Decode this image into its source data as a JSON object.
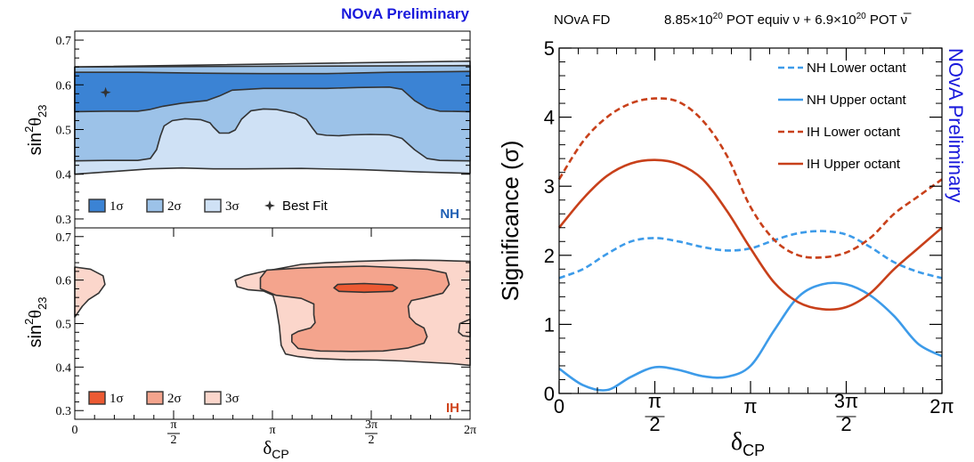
{
  "chart_data": [
    {
      "type": "contour",
      "panel": "NH",
      "title": "NOvA Preliminary",
      "title_color": "#1a1adc",
      "xlabel": "δ",
      "xlabel_sub": "CP",
      "ylabel": "sin",
      "ylabel_sup": "2",
      "ylabel_theta": "θ",
      "ylabel_sub": "23",
      "xlim": [
        0,
        6.2832
      ],
      "ylim": [
        0.28,
        0.72
      ],
      "xticks": [
        "0",
        "π/2",
        "π",
        "3π/2",
        "2π"
      ],
      "yticks": [
        "0.3",
        "0.4",
        "0.5",
        "0.6",
        "0.7"
      ],
      "panel_label": "NH",
      "panel_label_color": "#1f5fb4",
      "legend": [
        {
          "label": "1σ",
          "color": "#3b83d4"
        },
        {
          "label": "2σ",
          "color": "#9cc2e8"
        },
        {
          "label": "3σ",
          "color": "#cfe1f5"
        },
        {
          "label": "Best Fit",
          "marker": "star"
        }
      ],
      "best_fit": {
        "x": 0.49,
        "y": 0.583
      },
      "regions": [
        {
          "level": "3σ",
          "color": "#cfe1f5",
          "points": [
            [
              0,
              0.64
            ],
            [
              6.2832,
              0.653
            ],
            [
              6.2832,
              0.402
            ],
            [
              5.5,
              0.405
            ],
            [
              4.6,
              0.41
            ],
            [
              3.6,
              0.413
            ],
            [
              2.7,
              0.412
            ],
            [
              2.2,
              0.412
            ],
            [
              1.7,
              0.414
            ],
            [
              1.2,
              0.412
            ],
            [
              0.6,
              0.406
            ],
            [
              0,
              0.4
            ]
          ]
        },
        {
          "level": "2σ",
          "color": "#9cc2e8",
          "points": [
            [
              0,
              0.64
            ],
            [
              6.2832,
              0.643
            ],
            [
              6.2832,
              0.43
            ],
            [
              5.8,
              0.431
            ],
            [
              5.6,
              0.435
            ],
            [
              5.4,
              0.455
            ],
            [
              5.2,
              0.48
            ],
            [
              5.0,
              0.488
            ],
            [
              4.7,
              0.489
            ],
            [
              4.4,
              0.488
            ],
            [
              4.2,
              0.486
            ],
            [
              4.0,
              0.487
            ],
            [
              3.85,
              0.49
            ],
            [
              3.78,
              0.503
            ],
            [
              3.68,
              0.523
            ],
            [
              3.5,
              0.536
            ],
            [
              3.2,
              0.545
            ],
            [
              3.0,
              0.546
            ],
            [
              2.8,
              0.542
            ],
            [
              2.65,
              0.523
            ],
            [
              2.55,
              0.499
            ],
            [
              2.45,
              0.492
            ],
            [
              2.3,
              0.492
            ],
            [
              2.2,
              0.506
            ],
            [
              2.15,
              0.515
            ],
            [
              2.0,
              0.522
            ],
            [
              1.75,
              0.524
            ],
            [
              1.55,
              0.52
            ],
            [
              1.42,
              0.508
            ],
            [
              1.36,
              0.485
            ],
            [
              1.3,
              0.455
            ],
            [
              1.2,
              0.435
            ],
            [
              1.0,
              0.431
            ],
            [
              0.5,
              0.431
            ],
            [
              0,
              0.43
            ]
          ]
        },
        {
          "level": "1σ",
          "color": "#3b83d4",
          "points": [
            [
              0,
              0.628
            ],
            [
              1.0,
              0.628
            ],
            [
              2.0,
              0.626
            ],
            [
              3.0,
              0.625
            ],
            [
              4.0,
              0.625
            ],
            [
              5.0,
              0.628
            ],
            [
              6.2832,
              0.63
            ],
            [
              6.2832,
              0.54
            ],
            [
              5.8,
              0.541
            ],
            [
              5.6,
              0.548
            ],
            [
              5.4,
              0.565
            ],
            [
              5.2,
              0.59
            ],
            [
              5.0,
              0.595
            ],
            [
              4.5,
              0.594
            ],
            [
              4.0,
              0.592
            ],
            [
              3.0,
              0.592
            ],
            [
              2.5,
              0.588
            ],
            [
              2.3,
              0.575
            ],
            [
              2.1,
              0.565
            ],
            [
              1.7,
              0.559
            ],
            [
              1.4,
              0.552
            ],
            [
              1.2,
              0.545
            ],
            [
              1.0,
              0.541
            ],
            [
              0.5,
              0.541
            ],
            [
              0,
              0.54
            ]
          ]
        }
      ]
    },
    {
      "type": "contour",
      "panel": "IH",
      "xlabel": "δ",
      "xlabel_sub": "CP",
      "ylabel": "sin",
      "ylabel_sup": "2",
      "ylabel_theta": "θ",
      "ylabel_sub": "23",
      "xlim": [
        0,
        6.2832
      ],
      "ylim": [
        0.28,
        0.72
      ],
      "xticks": [
        "0",
        "π/2",
        "π",
        "3π/2",
        "2π"
      ],
      "yticks": [
        "0.3",
        "0.4",
        "0.5",
        "0.6",
        "0.7"
      ],
      "panel_label": "IH",
      "panel_label_color": "#d0441c",
      "legend": [
        {
          "label": "1σ",
          "color": "#ec5a33"
        },
        {
          "label": "2σ",
          "color": "#f4a48d"
        },
        {
          "label": "3σ",
          "color": "#fbd6cb"
        }
      ],
      "regions": [
        {
          "level": "3σ",
          "color": "#fbd6cb",
          "points": [
            [
              0,
              0.63
            ],
            [
              0.25,
              0.625
            ],
            [
              0.45,
              0.61
            ],
            [
              0.48,
              0.59
            ],
            [
              0.38,
              0.57
            ],
            [
              0.22,
              0.555
            ],
            [
              0.12,
              0.54
            ],
            [
              0,
              0.515
            ]
          ]
        },
        {
          "level": "3σ",
          "color": "#fbd6cb",
          "points": [
            [
              6.2832,
              0.643
            ],
            [
              5.8,
              0.645
            ],
            [
              5.4,
              0.646
            ],
            [
              5.0,
              0.645
            ],
            [
              4.5,
              0.643
            ],
            [
              4.0,
              0.64
            ],
            [
              3.6,
              0.636
            ],
            [
              3.3,
              0.628
            ],
            [
              3.0,
              0.62
            ],
            [
              2.7,
              0.61
            ],
            [
              2.55,
              0.6
            ],
            [
              2.58,
              0.585
            ],
            [
              2.75,
              0.578
            ],
            [
              3.0,
              0.575
            ],
            [
              3.15,
              0.565
            ],
            [
              3.2,
              0.54
            ],
            [
              3.25,
              0.495
            ],
            [
              3.28,
              0.45
            ],
            [
              3.35,
              0.43
            ],
            [
              3.55,
              0.424
            ],
            [
              3.8,
              0.42
            ],
            [
              4.3,
              0.417
            ],
            [
              4.8,
              0.416
            ],
            [
              5.2,
              0.414
            ],
            [
              5.6,
              0.411
            ],
            [
              6.0,
              0.408
            ],
            [
              6.2832,
              0.404
            ]
          ]
        },
        {
          "level": "2σ",
          "color": "#f4a48d",
          "points": [
            [
              3.05,
              0.623
            ],
            [
              3.6,
              0.628
            ],
            [
              4.0,
              0.63
            ],
            [
              4.6,
              0.632
            ],
            [
              5.1,
              0.629
            ],
            [
              5.6,
              0.625
            ],
            [
              5.9,
              0.616
            ],
            [
              5.95,
              0.59
            ],
            [
              5.85,
              0.57
            ],
            [
              5.55,
              0.559
            ],
            [
              5.35,
              0.553
            ],
            [
              5.3,
              0.54
            ],
            [
              5.32,
              0.515
            ],
            [
              5.42,
              0.5
            ],
            [
              5.55,
              0.49
            ],
            [
              5.6,
              0.47
            ],
            [
              5.55,
              0.455
            ],
            [
              5.3,
              0.444
            ],
            [
              4.9,
              0.437
            ],
            [
              4.4,
              0.436
            ],
            [
              3.9,
              0.437
            ],
            [
              3.55,
              0.443
            ],
            [
              3.45,
              0.458
            ],
            [
              3.45,
              0.474
            ],
            [
              3.55,
              0.482
            ],
            [
              3.75,
              0.49
            ],
            [
              3.82,
              0.502
            ],
            [
              3.8,
              0.52
            ],
            [
              3.8,
              0.545
            ],
            [
              3.6,
              0.558
            ],
            [
              3.2,
              0.565
            ],
            [
              2.95,
              0.58
            ],
            [
              2.95,
              0.605
            ]
          ]
        },
        {
          "level": "1σ",
          "color": "#ec5a33",
          "points": [
            [
              4.18,
              0.59
            ],
            [
              4.6,
              0.592
            ],
            [
              5.05,
              0.589
            ],
            [
              5.13,
              0.582
            ],
            [
              5.05,
              0.574
            ],
            [
              4.6,
              0.572
            ],
            [
              4.2,
              0.574
            ],
            [
              4.12,
              0.582
            ]
          ]
        },
        {
          "level": "3σ",
          "color": "#fbd6cb",
          "points": [
            [
              6.2832,
              0.47
            ],
            [
              6.17,
              0.472
            ],
            [
              6.1,
              0.48
            ],
            [
              6.12,
              0.5
            ],
            [
              6.2832,
              0.51
            ]
          ]
        }
      ]
    },
    {
      "type": "line",
      "header_left": "NOvA FD",
      "header_right_pre": "8.85×10",
      "header_right_sup1": "20",
      "header_right_mid": " POT equiv ν + 6.9×10",
      "header_right_sup2": "20",
      "header_right_post": " POT ν̅",
      "side_label": "NOvA Preliminary",
      "side_label_color": "#1a1adc",
      "xlabel": "δ",
      "xlabel_sub": "CP",
      "ylabel": "Significance (σ)",
      "xlim": [
        0,
        6.2832
      ],
      "ylim": [
        0,
        5
      ],
      "xticks": [
        "0",
        "π/2",
        "π",
        "3π/2",
        "2π"
      ],
      "yticks": [
        "0",
        "1",
        "2",
        "3",
        "4",
        "5"
      ],
      "x": [
        0,
        0.3927,
        0.7854,
        1.1781,
        1.5708,
        1.9635,
        2.3562,
        2.7489,
        3.1416,
        3.5343,
        3.927,
        4.3197,
        4.7124,
        5.1051,
        5.4978,
        5.8905,
        6.2832
      ],
      "series": [
        {
          "name": "NH Lower octant",
          "color": "#3d9be9",
          "dash": true,
          "values": [
            1.67,
            1.8,
            2.02,
            2.2,
            2.25,
            2.2,
            2.12,
            2.07,
            2.1,
            2.22,
            2.32,
            2.35,
            2.3,
            2.12,
            1.9,
            1.76,
            1.67
          ]
        },
        {
          "name": "NH Upper octant",
          "color": "#3d9be9",
          "dash": false,
          "values": [
            0.36,
            0.12,
            0.05,
            0.24,
            0.38,
            0.34,
            0.25,
            0.24,
            0.4,
            0.92,
            1.4,
            1.58,
            1.58,
            1.42,
            1.12,
            0.72,
            0.54
          ]
        },
        {
          "name": "IH Lower octant",
          "color": "#c8401a",
          "dash": true,
          "values": [
            3.1,
            3.65,
            4.0,
            4.2,
            4.27,
            4.22,
            3.95,
            3.45,
            2.7,
            2.22,
            2.0,
            1.97,
            2.04,
            2.25,
            2.6,
            2.85,
            3.1
          ]
        },
        {
          "name": "IH Upper octant",
          "color": "#c8401a",
          "dash": false,
          "values": [
            2.4,
            2.82,
            3.15,
            3.33,
            3.38,
            3.32,
            3.1,
            2.65,
            2.1,
            1.6,
            1.32,
            1.22,
            1.25,
            1.45,
            1.8,
            2.1,
            2.4
          ]
        }
      ]
    }
  ]
}
